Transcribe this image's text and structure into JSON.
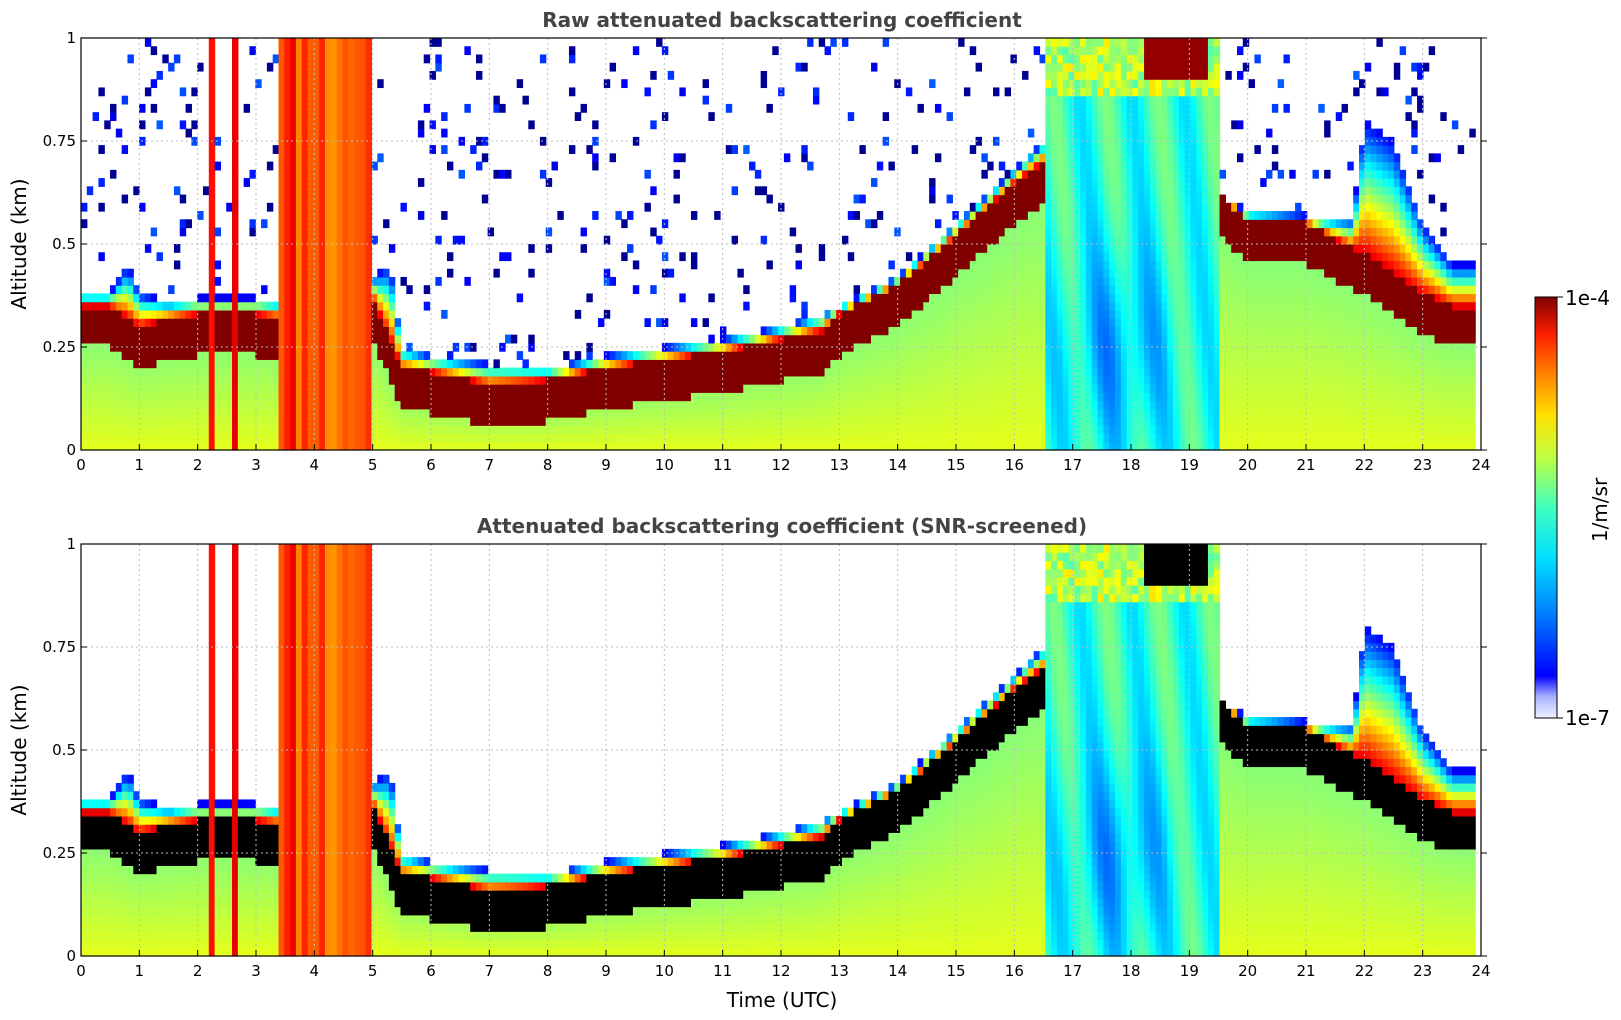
{
  "chart_data": [
    {
      "type": "heatmap",
      "title": "Raw attenuated backscattering coefficient",
      "xlabel": "",
      "ylabel": "Altitude (km)",
      "xlim": [
        0,
        24
      ],
      "ylim": [
        0,
        1
      ],
      "x_ticks": [
        "0",
        "1",
        "2",
        "3",
        "4",
        "5",
        "6",
        "7",
        "8",
        "9",
        "10",
        "11",
        "12",
        "13",
        "14",
        "15",
        "16",
        "17",
        "18",
        "19",
        "20",
        "21",
        "22",
        "23",
        "24"
      ],
      "y_ticks": [
        "0",
        "0.25",
        "0.5",
        "0.75",
        "1"
      ],
      "grid": true,
      "screened": false,
      "layer_top_km": [
        [
          0,
          0.38
        ],
        [
          0.5,
          0.38
        ],
        [
          0.8,
          0.45
        ],
        [
          1,
          0.38
        ],
        [
          1.5,
          0.36
        ],
        [
          2,
          0.37
        ],
        [
          3,
          0.37
        ],
        [
          3.5,
          0.36
        ],
        [
          4,
          0.36
        ],
        [
          4.5,
          0.38
        ],
        [
          5,
          0.42
        ],
        [
          5.3,
          0.45
        ],
        [
          5.5,
          0.25
        ],
        [
          6,
          0.23
        ],
        [
          7,
          0.21
        ],
        [
          8,
          0.2
        ],
        [
          9,
          0.23
        ],
        [
          10,
          0.25
        ],
        [
          11,
          0.27
        ],
        [
          12,
          0.3
        ],
        [
          12.7,
          0.33
        ],
        [
          13,
          0.35
        ],
        [
          14,
          0.42
        ],
        [
          15,
          0.55
        ],
        [
          16,
          0.68
        ],
        [
          16.5,
          0.75
        ],
        [
          17,
          0.9
        ],
        [
          18,
          1.0
        ],
        [
          19,
          0.95
        ],
        [
          19.5,
          0.62
        ],
        [
          20,
          0.58
        ],
        [
          21,
          0.57
        ],
        [
          21.8,
          0.56
        ],
        [
          22,
          0.8
        ],
        [
          22.5,
          0.75
        ],
        [
          23,
          0.55
        ],
        [
          23.5,
          0.45
        ],
        [
          23.9,
          0.45
        ]
      ],
      "layer_core_km": [
        [
          0,
          0.3
        ],
        [
          0.5,
          0.3
        ],
        [
          1,
          0.25
        ],
        [
          1.5,
          0.27
        ],
        [
          2,
          0.28
        ],
        [
          3,
          0.28
        ],
        [
          3.5,
          0.27
        ],
        [
          4,
          0.28
        ],
        [
          4.5,
          0.3
        ],
        [
          5,
          0.32
        ],
        [
          5.5,
          0.15
        ],
        [
          6,
          0.14
        ],
        [
          7,
          0.11
        ],
        [
          8,
          0.12
        ],
        [
          9,
          0.15
        ],
        [
          10,
          0.17
        ],
        [
          11,
          0.19
        ],
        [
          12,
          0.22
        ],
        [
          12.7,
          0.24
        ],
        [
          13,
          0.28
        ],
        [
          14,
          0.35
        ],
        [
          15,
          0.47
        ],
        [
          16,
          0.6
        ],
        [
          16.5,
          0.65
        ],
        [
          19.5,
          0.58
        ],
        [
          20,
          0.5
        ],
        [
          21,
          0.5
        ],
        [
          21.8,
          0.44
        ],
        [
          22,
          0.43
        ],
        [
          23,
          0.33
        ],
        [
          23.5,
          0.3
        ],
        [
          23.9,
          0.3
        ]
      ],
      "precipitation_intervals_utc": [
        [
          2.2,
          2.3
        ],
        [
          2.6,
          2.7
        ],
        [
          3.4,
          5.0
        ]
      ],
      "fog_interval_utc": [
        16.5,
        19.5
      ]
    },
    {
      "type": "heatmap",
      "title": "Attenuated backscattering coefficient (SNR-screened)",
      "xlabel": "Time (UTC)",
      "ylabel": "Altitude (km)",
      "xlim": [
        0,
        24
      ],
      "ylim": [
        0,
        1
      ],
      "x_ticks": [
        "0",
        "1",
        "2",
        "3",
        "4",
        "5",
        "6",
        "7",
        "8",
        "9",
        "10",
        "11",
        "12",
        "13",
        "14",
        "15",
        "16",
        "17",
        "18",
        "19",
        "20",
        "21",
        "22",
        "23",
        "24"
      ],
      "y_ticks": [
        "0",
        "0.25",
        "0.5",
        "0.75",
        "1"
      ],
      "grid": true,
      "screened": true
    }
  ],
  "colorbar": {
    "label": "1/m/sr",
    "max_label": "1e-4",
    "min_label": "1e-7",
    "scale": "log",
    "range": [
      1e-07,
      0.0001
    ],
    "colormap": "jet",
    "clip_color": "#000000"
  }
}
